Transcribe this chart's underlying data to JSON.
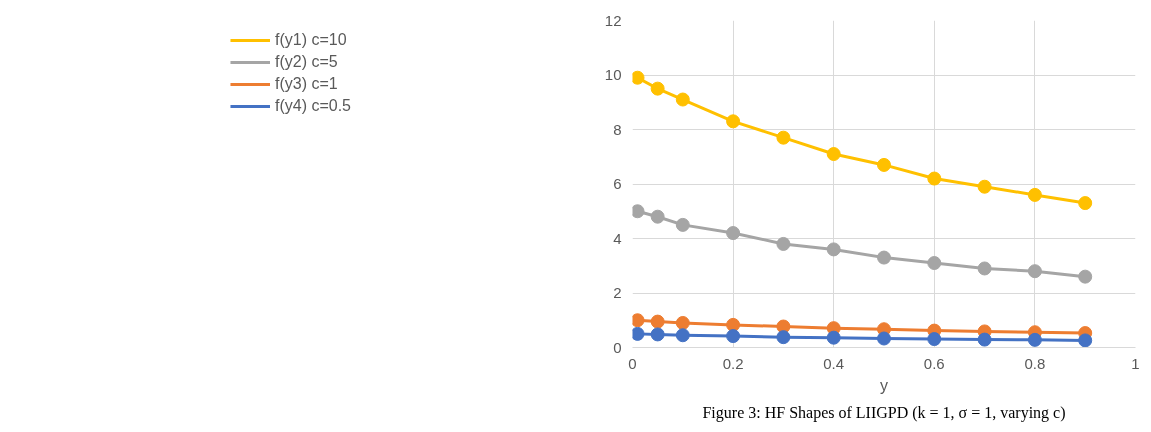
{
  "chart_data": {
    "type": "line",
    "xlabel": "y",
    "annotations": [
      "Figure 3: HF Shapes of LIIGPD (k = 1, σ = 1, varying c)"
    ],
    "x": [
      0.01,
      0.05,
      0.1,
      0.2,
      0.3,
      0.4,
      0.5,
      0.6,
      0.7,
      0.8,
      0.9
    ],
    "series": [
      {
        "name": "f(y1) c=10",
        "color": "#ffc000",
        "values": [
          9.9,
          9.5,
          9.1,
          8.3,
          7.7,
          7.1,
          6.7,
          6.2,
          5.9,
          5.6,
          5.3
        ]
      },
      {
        "name": "f(y2) c=5",
        "color": "#a5a5a5",
        "values": [
          5.0,
          4.8,
          4.5,
          4.2,
          3.8,
          3.6,
          3.3,
          3.1,
          2.9,
          2.8,
          2.6
        ]
      },
      {
        "name": "f(y3) c=1",
        "color": "#ed7d31",
        "values": [
          1.0,
          0.95,
          0.9,
          0.83,
          0.77,
          0.71,
          0.67,
          0.62,
          0.59,
          0.56,
          0.53
        ]
      },
      {
        "name": "f(y4) c=0.5",
        "color": "#4472c4",
        "values": [
          0.5,
          0.48,
          0.45,
          0.42,
          0.38,
          0.36,
          0.33,
          0.31,
          0.29,
          0.28,
          0.26
        ]
      }
    ],
    "xlim": [
      0,
      1
    ],
    "xticks": [
      0,
      0.2,
      0.4,
      0.6,
      0.8,
      1
    ],
    "ylim": [
      0,
      12
    ],
    "yticks": [
      0,
      2,
      4,
      6,
      8,
      10,
      12
    ],
    "grid": true,
    "legend": "left",
    "marker": "circle",
    "line_style": "solid"
  }
}
